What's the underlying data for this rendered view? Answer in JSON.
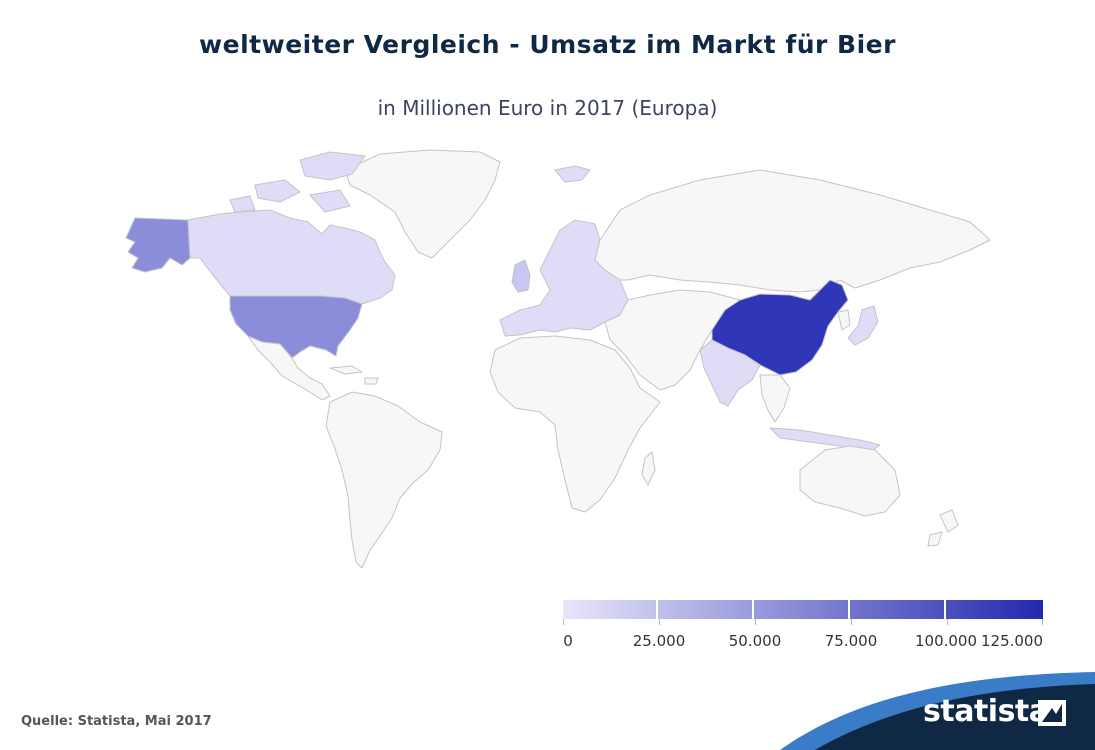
{
  "title": "weltweiter Vergleich - Umsatz im Markt für Bier",
  "subtitle": "in Millionen Euro in 2017 (Europa)",
  "source": "Quelle: Statista, Mai 2017",
  "brand": "statista",
  "colors": {
    "land_default": "#f7f7f7",
    "border": "#c4c4c8",
    "scale_min": "#e8e6fa",
    "scale_max": "#2329ae"
  },
  "legend": {
    "min": 0,
    "max": 125000,
    "labels": [
      "0",
      "25.000",
      "50.000",
      "75.000",
      "100.000",
      "125.000"
    ]
  },
  "countries": [
    {
      "name": "China",
      "shade": 0.95
    },
    {
      "name": "USA",
      "shade": 0.5
    },
    {
      "name": "Alaska",
      "shade": 0.5
    },
    {
      "name": "Kanada",
      "shade": 0.12
    },
    {
      "name": "Indien",
      "shade": 0.1
    },
    {
      "name": "Japan",
      "shade": 0.12
    },
    {
      "name": "Europa",
      "shade": 0.15
    }
  ]
}
